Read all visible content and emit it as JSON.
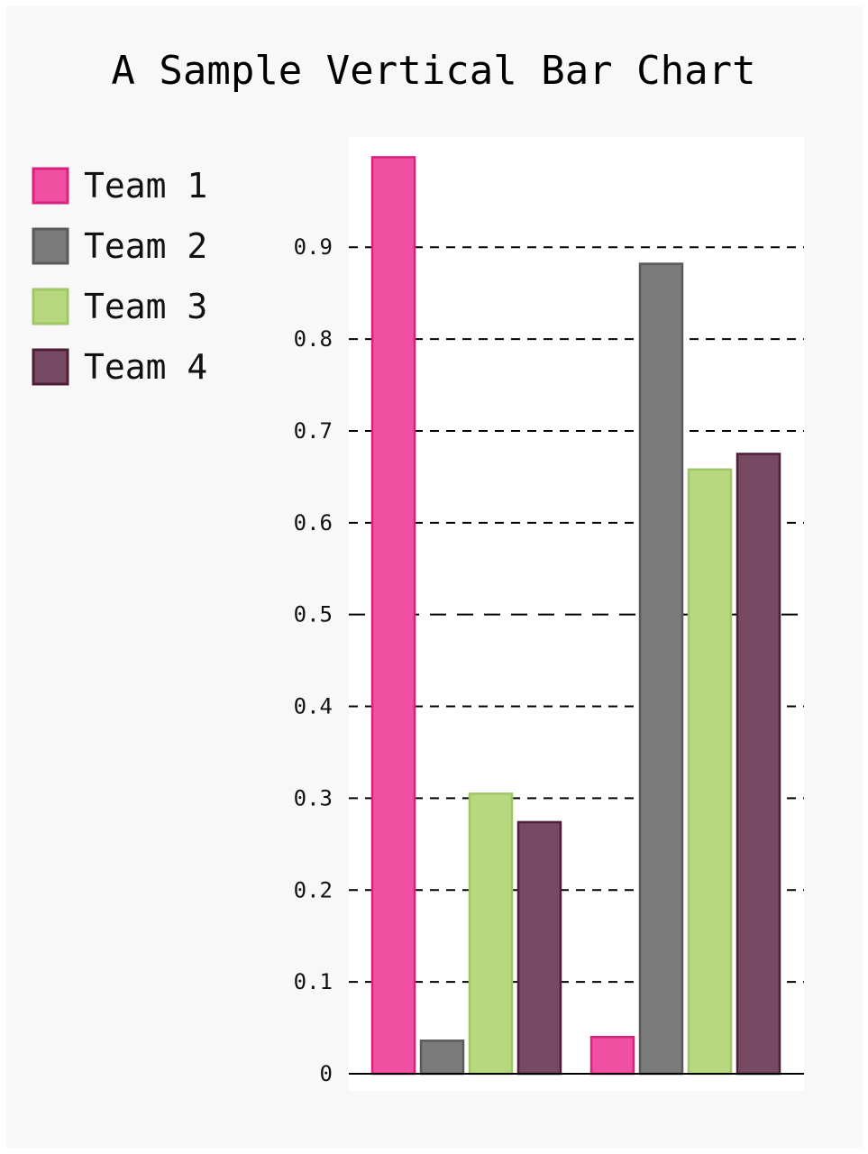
{
  "chart_data": {
    "type": "bar",
    "title": "A Sample Vertical Bar Chart",
    "xlabel": "",
    "ylabel": "",
    "categories": [
      "",
      ""
    ],
    "series": [
      {
        "name": "Team 1",
        "color": "#f04fa2",
        "stroke": "#d9227f",
        "values": [
          0.998,
          0.04
        ]
      },
      {
        "name": "Team 2",
        "color": "#7a7a7a",
        "stroke": "#5a5a5a",
        "values": [
          0.036,
          0.882
        ]
      },
      {
        "name": "Team 3",
        "color": "#b8d880",
        "stroke": "#9ec865",
        "values": [
          0.305,
          0.658
        ]
      },
      {
        "name": "Team 4",
        "color": "#774a63",
        "stroke": "#4e1f39",
        "values": [
          0.274,
          0.675
        ]
      }
    ],
    "yticks": [
      "0",
      "0.1",
      "0.2",
      "0.3",
      "0.4",
      "0.5",
      "0.6",
      "0.7",
      "0.8",
      "0.9"
    ],
    "ylim": [
      0,
      1.02
    ],
    "grid": true,
    "legend": "top-left"
  }
}
